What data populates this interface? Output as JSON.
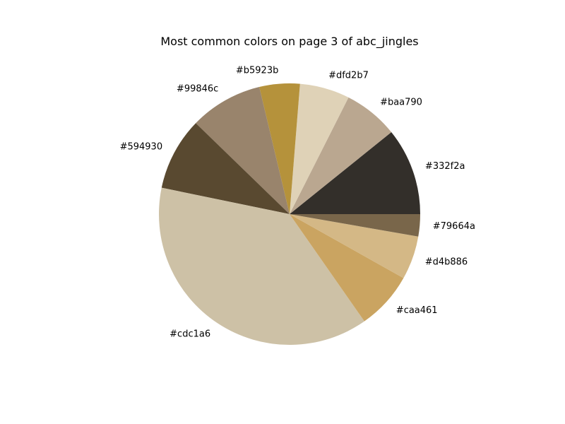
{
  "chart_data": {
    "type": "pie",
    "title": "Most common colors on page 3 of abc_jingles",
    "start_angle_deg": 0,
    "direction": "counterclockwise",
    "slices": [
      {
        "label": "#332f2a",
        "color": "#332f2a",
        "value": 11.0
      },
      {
        "label": "#baa790",
        "color": "#baa790",
        "value": 6.9
      },
      {
        "label": "#dfd2b7",
        "color": "#dfd2b7",
        "value": 6.3
      },
      {
        "label": "#b5923b",
        "color": "#b5923b",
        "value": 5.1
      },
      {
        "label": "#99846c",
        "color": "#99846c",
        "value": 9.2
      },
      {
        "label": "#594930",
        "color": "#594930",
        "value": 9.2
      },
      {
        "label": "#cdc1a6",
        "color": "#cdc1a6",
        "value": 38.7
      },
      {
        "label": "#caa461",
        "color": "#caa461",
        "value": 7.3
      },
      {
        "label": "#d4b886",
        "color": "#d4b886",
        "value": 5.5
      },
      {
        "label": "#79664a",
        "color": "#79664a",
        "value": 2.8
      }
    ]
  }
}
